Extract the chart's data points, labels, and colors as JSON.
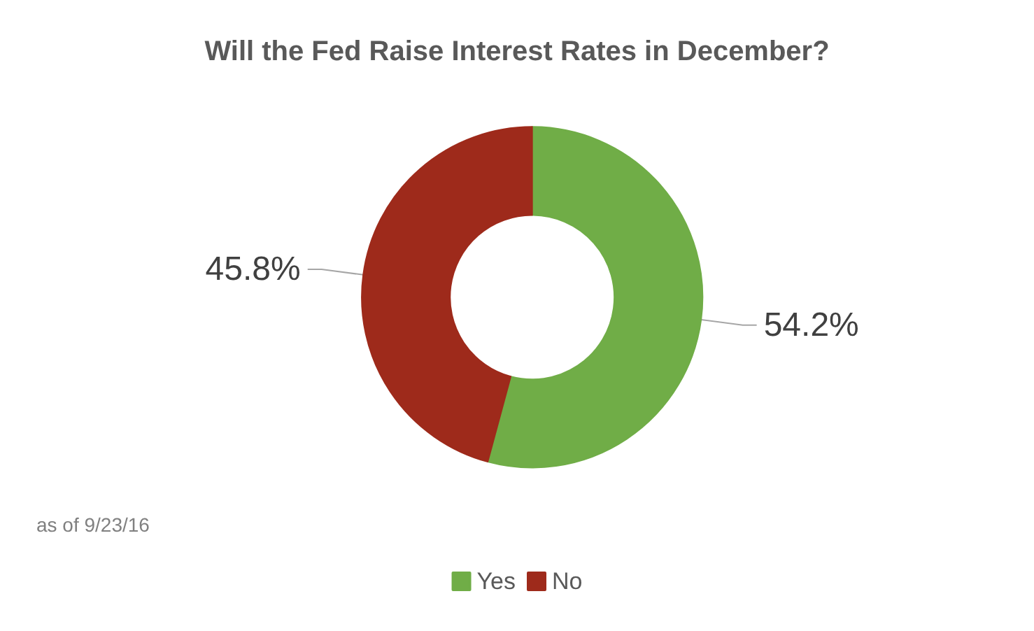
{
  "chart_data": {
    "type": "donut",
    "title": "Will the Fed Raise Interest Rates in December?",
    "categories": [
      "Yes",
      "No"
    ],
    "values": [
      54.2,
      45.8
    ],
    "colors": [
      "#70ad47",
      "#9e2a1b"
    ],
    "value_labels": [
      "54.2%",
      "45.8%"
    ],
    "legend": "bottom",
    "annotations": [
      "as of 9/23/16"
    ]
  }
}
